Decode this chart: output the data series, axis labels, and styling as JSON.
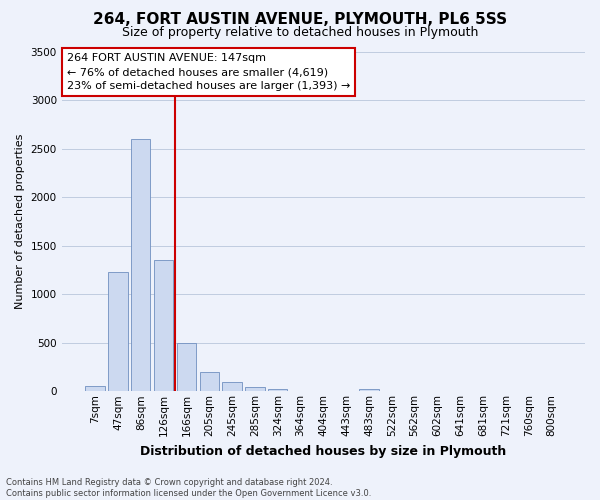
{
  "title": "264, FORT AUSTIN AVENUE, PLYMOUTH, PL6 5SS",
  "subtitle": "Size of property relative to detached houses in Plymouth",
  "xlabel": "Distribution of detached houses by size in Plymouth",
  "ylabel": "Number of detached properties",
  "bar_labels": [
    "7sqm",
    "47sqm",
    "86sqm",
    "126sqm",
    "166sqm",
    "205sqm",
    "245sqm",
    "285sqm",
    "324sqm",
    "364sqm",
    "404sqm",
    "443sqm",
    "483sqm",
    "522sqm",
    "562sqm",
    "602sqm",
    "641sqm",
    "681sqm",
    "721sqm",
    "760sqm",
    "800sqm"
  ],
  "bar_values": [
    50,
    1230,
    2600,
    1350,
    500,
    200,
    100,
    45,
    20,
    5,
    5,
    0,
    20,
    0,
    0,
    0,
    0,
    0,
    0,
    0,
    0
  ],
  "bar_color": "#ccd9f0",
  "bar_edge_color": "#7090c0",
  "vline_color": "#cc0000",
  "ylim": [
    0,
    3500
  ],
  "yticks": [
    0,
    500,
    1000,
    1500,
    2000,
    2500,
    3000,
    3500
  ],
  "annotation_title": "264 FORT AUSTIN AVENUE: 147sqm",
  "annotation_line1": "← 76% of detached houses are smaller (4,619)",
  "annotation_line2": "23% of semi-detached houses are larger (1,393) →",
  "annotation_box_facecolor": "#ffffff",
  "annotation_box_edgecolor": "#cc0000",
  "footer_line1": "Contains HM Land Registry data © Crown copyright and database right 2024.",
  "footer_line2": "Contains public sector information licensed under the Open Government Licence v3.0.",
  "background_color": "#eef2fb",
  "grid_color": "#c0cce0",
  "title_fontsize": 11,
  "subtitle_fontsize": 9,
  "xlabel_fontsize": 9,
  "ylabel_fontsize": 8,
  "tick_fontsize": 7.5,
  "annotation_fontsize": 8,
  "footer_fontsize": 6
}
